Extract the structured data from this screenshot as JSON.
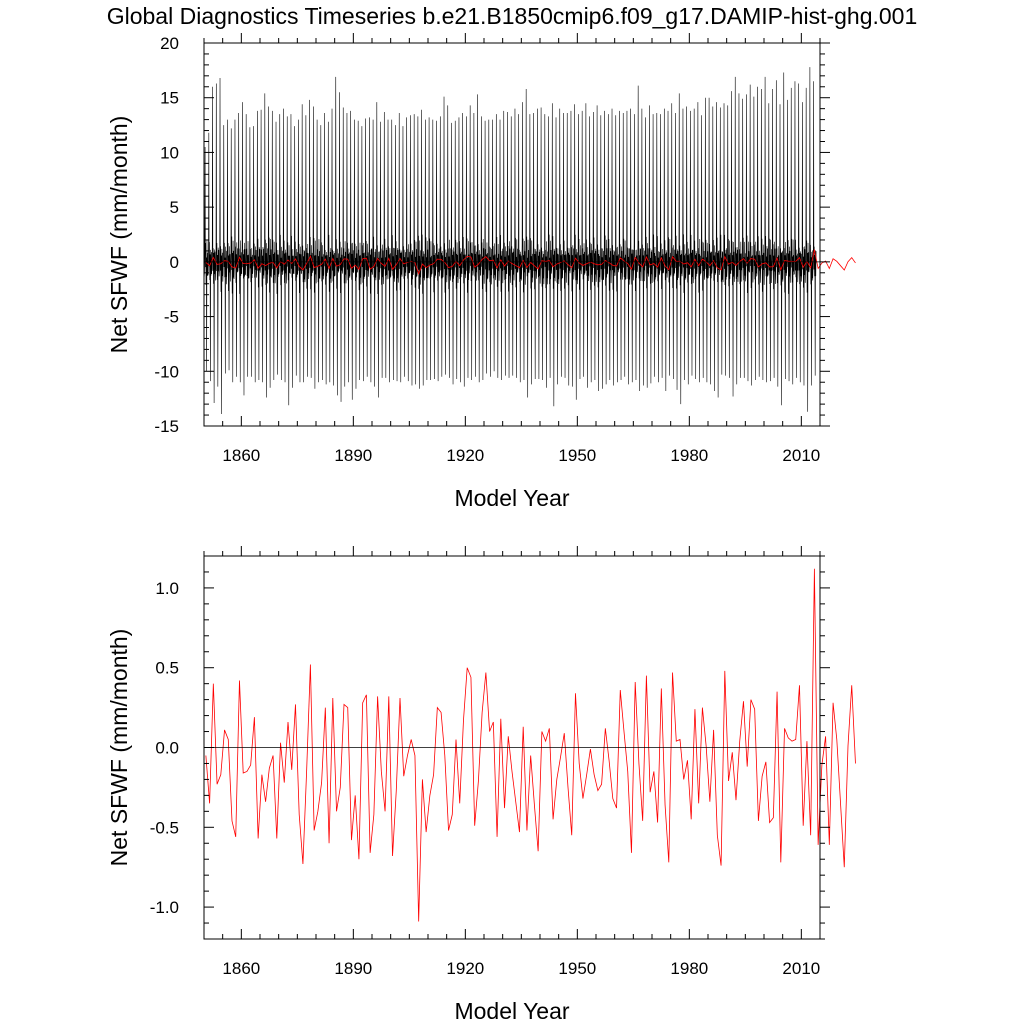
{
  "title": "Global Diagnostics Timeseries b.e21.B1850cmip6.f09_g17.DAMIP-hist-ghg.001",
  "colors": {
    "monthly": "#000000",
    "annual": "#ff0000",
    "zero_line": "#000000"
  },
  "chart_data": [
    {
      "type": "line",
      "xlabel": "Model Year",
      "ylabel": "Net SFWF (mm/month)",
      "xlim": [
        1850,
        2015
      ],
      "ylim": [
        -15,
        20
      ],
      "xticks": [
        "1860",
        "1890",
        "1920",
        "1950",
        "1980",
        "2010"
      ],
      "yticks": [
        "-15",
        "-10",
        "-5",
        "0",
        "5",
        "10",
        "15",
        "20"
      ],
      "reference_line_y": 0,
      "series": [
        {
          "role": "monthly",
          "color": "#000000",
          "resolution": "monthly, seasonal cycle",
          "annual_peak_max": [
            10.5,
            11.8,
            16.0,
            16.3,
            16.8,
            12.5,
            13.0,
            12.2,
            13.0,
            13.6,
            14.6,
            13.5,
            12.3,
            12.4,
            13.8,
            13.9,
            15.4,
            14.2,
            13.8,
            12.8,
            13.5,
            14.0,
            13.3,
            13.5,
            12.4,
            13.0,
            14.4,
            13.4,
            14.8,
            14.2,
            13.0,
            12.5,
            13.6,
            12.8,
            14.0,
            16.9,
            15.5,
            14.1,
            13.6,
            13.8,
            13.0,
            12.9,
            12.4,
            13.1,
            13.2,
            13.0,
            14.6,
            12.8,
            13.7,
            13.0,
            13.0,
            12.5,
            13.6,
            12.4,
            13.2,
            13.4,
            13.5,
            13.3,
            13.9,
            13.0,
            13.2,
            13.0,
            12.9,
            13.3,
            15.1,
            14.3,
            12.7,
            12.9,
            13.2,
            13.6,
            13.3,
            14.3,
            13.6,
            15.3,
            13.3,
            12.9,
            13.0,
            13.0,
            13.5,
            13.0,
            13.8,
            13.7,
            13.3,
            14.0,
            13.5,
            14.6,
            15.8,
            13.5,
            13.6,
            14.0,
            14.1,
            13.5,
            13.3,
            14.5,
            13.2,
            14.0,
            13.6,
            13.6,
            13.8,
            14.4,
            13.5,
            13.8,
            14.5,
            13.3,
            13.7,
            14.3,
            13.4,
            13.8,
            13.5,
            14.0,
            13.4,
            13.8,
            13.6,
            13.8,
            14.0,
            13.5,
            16.1,
            14.0,
            13.2,
            14.3,
            13.5,
            13.6,
            13.5,
            14.0,
            13.8,
            14.5,
            13.6,
            15.4,
            14.0,
            14.2,
            13.8,
            14.0,
            14.6,
            13.4,
            15.0,
            15.0,
            14.2,
            14.6,
            14.1,
            14.5,
            14.3,
            15.6,
            16.9,
            15.4,
            14.9,
            15.3,
            16.2,
            15.1,
            16.0,
            15.8,
            16.9,
            14.5,
            15.8,
            16.6,
            14.4,
            17.3,
            14.8,
            15.9,
            16.5,
            16.3,
            14.6,
            15.9,
            17.8,
            16.5
          ],
          "annual_trough_min": [
            -10.0,
            -10.9,
            -12.9,
            -11.4,
            -13.9,
            -10.2,
            -9.9,
            -11.0,
            -10.5,
            -11.0,
            -12.2,
            -10.5,
            -10.5,
            -11.0,
            -10.8,
            -11.0,
            -12.4,
            -11.5,
            -10.8,
            -10.3,
            -10.8,
            -11.0,
            -13.1,
            -11.5,
            -10.4,
            -11.0,
            -11.0,
            -10.5,
            -10.6,
            -11.6,
            -11.0,
            -10.8,
            -11.2,
            -11.0,
            -11.3,
            -12.2,
            -12.8,
            -11.4,
            -11.0,
            -12.6,
            -11.6,
            -10.8,
            -10.9,
            -10.5,
            -11.0,
            -11.4,
            -12.4,
            -10.6,
            -10.6,
            -11.0,
            -10.8,
            -10.9,
            -11.0,
            -10.5,
            -10.9,
            -11.3,
            -11.2,
            -11.6,
            -11.3,
            -10.8,
            -10.8,
            -10.7,
            -10.9,
            -10.5,
            -10.3,
            -10.6,
            -11.2,
            -10.7,
            -11.0,
            -11.4,
            -10.6,
            -10.8,
            -10.5,
            -11.0,
            -10.8,
            -10.2,
            -10.5,
            -10.0,
            -10.6,
            -10.8,
            -10.4,
            -10.6,
            -10.4,
            -10.6,
            -11.0,
            -10.8,
            -12.4,
            -11.2,
            -10.7,
            -10.7,
            -10.8,
            -11.5,
            -10.6,
            -13.2,
            -11.2,
            -10.5,
            -10.6,
            -11.3,
            -11.4,
            -12.6,
            -10.7,
            -10.5,
            -11.5,
            -11.0,
            -10.8,
            -11.8,
            -11.6,
            -11.2,
            -10.8,
            -11.3,
            -11.0,
            -10.8,
            -10.5,
            -11.2,
            -11.0,
            -10.8,
            -11.8,
            -11.3,
            -11.5,
            -11.1,
            -10.5,
            -11.0,
            -10.6,
            -11.8,
            -10.4,
            -10.7,
            -11.7,
            -13.0,
            -10.8,
            -11.2,
            -10.4,
            -10.7,
            -11.0,
            -10.6,
            -11.0,
            -11.2,
            -11.8,
            -12.4,
            -10.3,
            -10.4,
            -10.6,
            -12.3,
            -11.2,
            -10.6,
            -10.6,
            -10.9,
            -11.3,
            -10.8,
            -10.5,
            -10.8,
            -11.0,
            -10.9,
            -10.6,
            -11.4,
            -13.1,
            -10.7,
            -10.9,
            -11.2,
            -10.6,
            -11.0,
            -11.3,
            -13.7,
            -11.3,
            -10.4
          ],
          "intra_annual_band": [
            -3,
            3
          ]
        },
        {
          "role": "annual mean",
          "color": "#ff0000",
          "note": "same series as lower panel, drawn over the monthly trace"
        }
      ]
    },
    {
      "type": "line",
      "xlabel": "Model Year",
      "ylabel": "Net SFWF (mm/month)",
      "xlim": [
        1850,
        2015
      ],
      "ylim": [
        -1.2,
        1.2
      ],
      "xticks": [
        "1860",
        "1890",
        "1920",
        "1950",
        "1980",
        "2010"
      ],
      "yticks": [
        "-1.0",
        "-0.5",
        "0.0",
        "0.5",
        "1.0"
      ],
      "reference_line_y": 0,
      "series": [
        {
          "role": "annual mean",
          "color": "#ff0000",
          "x_start": 1850,
          "x_step": 1,
          "values": [
            -0.05,
            -0.35,
            0.4,
            -0.23,
            -0.17,
            0.11,
            0.05,
            -0.46,
            -0.56,
            0.42,
            -0.16,
            -0.15,
            -0.11,
            0.19,
            -0.57,
            -0.17,
            -0.34,
            -0.13,
            -0.05,
            -0.57,
            0.03,
            -0.22,
            0.16,
            -0.14,
            0.27,
            -0.42,
            -0.73,
            -0.14,
            0.52,
            -0.52,
            -0.4,
            -0.22,
            0.25,
            -0.6,
            0.31,
            -0.4,
            -0.25,
            0.27,
            0.25,
            -0.58,
            -0.3,
            -0.7,
            0.28,
            0.33,
            -0.66,
            -0.42,
            0.32,
            -0.15,
            -0.4,
            0.32,
            -0.68,
            -0.27,
            0.31,
            -0.18,
            -0.05,
            0.05,
            -0.05,
            -1.09,
            -0.2,
            -0.53,
            -0.3,
            -0.17,
            0.25,
            0.22,
            -0.05,
            -0.52,
            -0.42,
            0.05,
            -0.35,
            0.17,
            0.5,
            0.44,
            -0.49,
            -0.21,
            0.22,
            0.47,
            0.1,
            0.16,
            -0.56,
            0.18,
            -0.38,
            0.07,
            -0.15,
            -0.34,
            -0.53,
            0.13,
            -0.52,
            -0.05,
            -0.36,
            -0.65,
            0.1,
            0.04,
            0.12,
            -0.45,
            -0.2,
            -0.06,
            0.09,
            -0.25,
            -0.55,
            0.34,
            -0.1,
            -0.32,
            -0.17,
            -0.01,
            -0.17,
            -0.27,
            -0.23,
            0.12,
            -0.08,
            -0.32,
            -0.38,
            0.36,
            0.1,
            -0.15,
            -0.66,
            0.41,
            -0.1,
            -0.46,
            0.45,
            -0.28,
            -0.15,
            -0.47,
            0.37,
            -0.36,
            -0.72,
            0.47,
            0.04,
            0.05,
            -0.2,
            -0.08,
            -0.45,
            0.24,
            -0.35,
            0.25,
            0.01,
            -0.34,
            0.11,
            -0.55,
            -0.74,
            0.48,
            -0.21,
            -0.03,
            -0.33,
            0.04,
            0.29,
            -0.12,
            0.3,
            0.24,
            -0.46,
            -0.18,
            -0.09,
            -0.47,
            -0.44,
            0.35,
            -0.72,
            0.12,
            0.06,
            0.04,
            0.05,
            0.39,
            -0.49,
            0.04,
            -0.55,
            1.12,
            -0.61,
            -0.11,
            0.07,
            -0.61,
            0.28,
            0.05,
            -0.35,
            -0.75,
            0.01,
            0.39,
            -0.1
          ]
        }
      ]
    }
  ]
}
